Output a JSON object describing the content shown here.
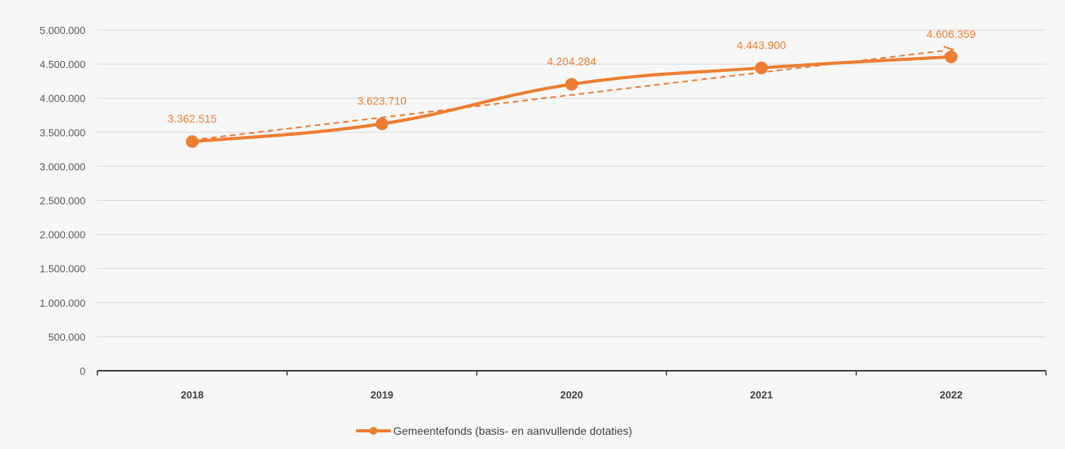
{
  "chart_data": {
    "type": "line",
    "categories": [
      "2018",
      "2019",
      "2020",
      "2021",
      "2022"
    ],
    "series": [
      {
        "name": "Gemeentefonds (basis- en aanvullende dotaties)",
        "values": [
          3362515,
          3623710,
          4204284,
          4443900,
          4606359
        ],
        "labels": [
          "3.362.515",
          "3.623.710",
          "4.204.284",
          "4.443.900",
          "4.606.359"
        ],
        "color": "#ed7d31",
        "marker": "circle",
        "smooth": true,
        "trendline": "linear (dashed)"
      }
    ],
    "yticks": [
      {
        "value": 0,
        "label": "0"
      },
      {
        "value": 500000,
        "label": "500.000"
      },
      {
        "value": 1000000,
        "label": "1.000.000"
      },
      {
        "value": 1500000,
        "label": "1.500.000"
      },
      {
        "value": 2000000,
        "label": "2.000.000"
      },
      {
        "value": 2500000,
        "label": "2.500.000"
      },
      {
        "value": 3000000,
        "label": "3.000.000"
      },
      {
        "value": 3500000,
        "label": "3.500.000"
      },
      {
        "value": 4000000,
        "label": "4.000.000"
      },
      {
        "value": 4500000,
        "label": "4.500.000"
      },
      {
        "value": 5000000,
        "label": "5.000.000"
      }
    ],
    "ylim": [
      0,
      5000000
    ],
    "grid": true,
    "legend_position": "bottom",
    "title": "",
    "xlabel": "",
    "ylabel": ""
  }
}
